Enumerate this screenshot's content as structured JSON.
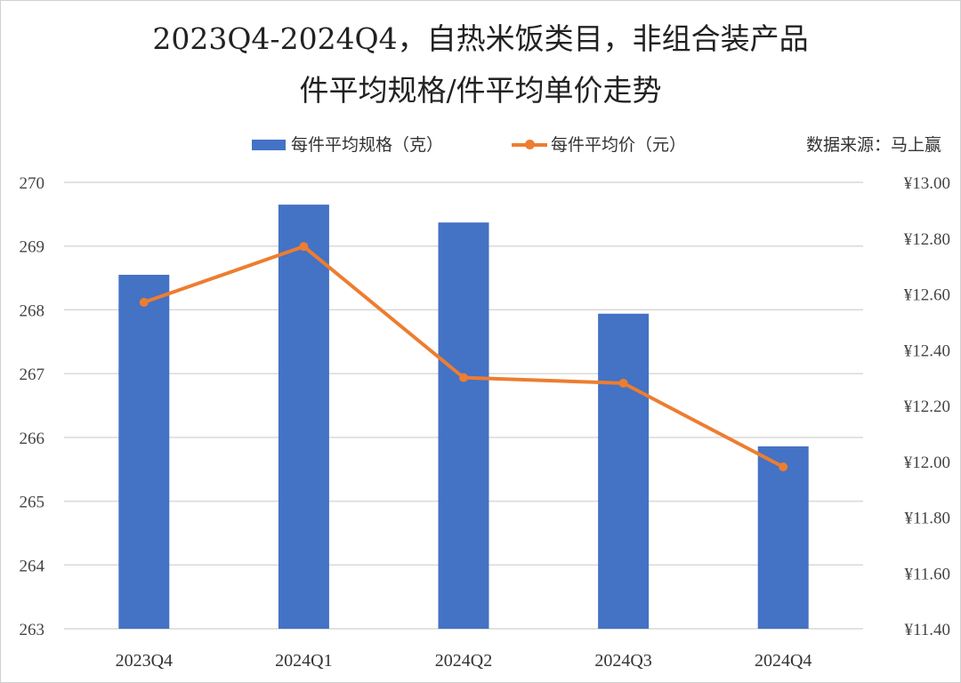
{
  "title_line1": "2023Q4-2024Q4，自热米饭类目，非组合装产品",
  "title_line2": "件平均规格/件平均单价走势",
  "source": "数据来源：马上赢",
  "colors": {
    "bar": "#4472c4",
    "line": "#ed7d31",
    "grid": "#d9d9d9"
  },
  "chart_data": {
    "type": "bar",
    "categories": [
      "2023Q4",
      "2024Q1",
      "2024Q2",
      "2024Q3",
      "2024Q4"
    ],
    "series": [
      {
        "name": "每件平均规格（克）",
        "type": "bar",
        "axis": "left",
        "values": [
          268.55,
          269.65,
          269.37,
          267.94,
          265.86
        ]
      },
      {
        "name": "每件平均价（元）",
        "type": "line",
        "axis": "right",
        "values": [
          12.57,
          12.77,
          12.3,
          12.28,
          11.98
        ]
      }
    ],
    "y_left": {
      "ylim": [
        263,
        270
      ],
      "ticks": [
        "263",
        "264",
        "265",
        "266",
        "267",
        "268",
        "269",
        "270"
      ]
    },
    "y_right": {
      "ylim": [
        11.4,
        13.0
      ],
      "ticks": [
        "¥11.40",
        "¥11.60",
        "¥11.80",
        "¥12.00",
        "¥12.20",
        "¥12.40",
        "¥12.60",
        "¥12.80",
        "¥13.00"
      ]
    },
    "grid": true,
    "legend_position": "top"
  }
}
